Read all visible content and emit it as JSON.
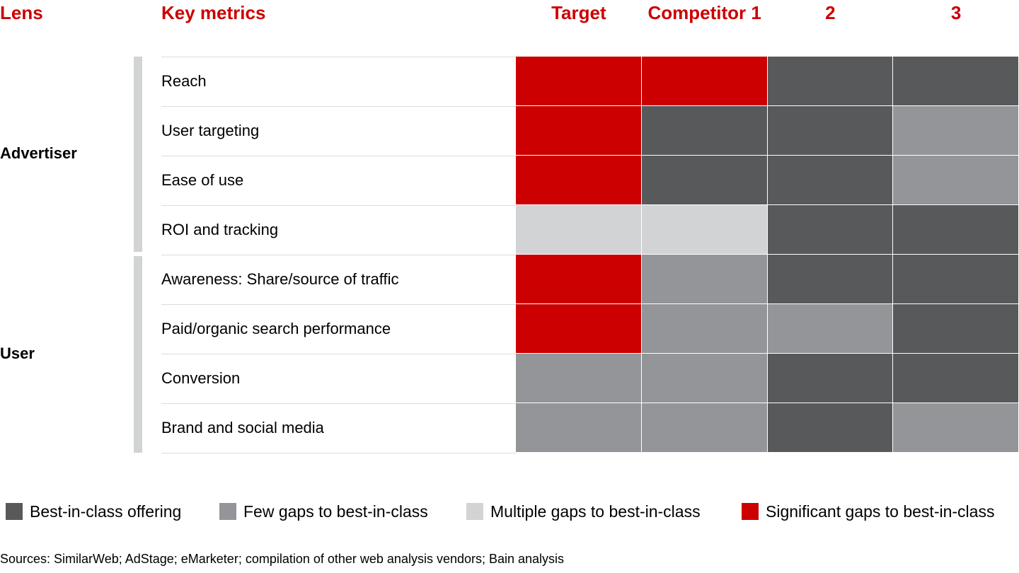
{
  "header": {
    "lens": "Lens",
    "metrics": "Key metrics",
    "columns": [
      "Target",
      "Competitor 1",
      "2",
      "3"
    ]
  },
  "groups": [
    {
      "label": "Advertiser",
      "rows": [
        0,
        3
      ]
    },
    {
      "label": "User",
      "rows": [
        4,
        7
      ]
    }
  ],
  "table": {
    "rows": [
      {
        "metric": "Reach",
        "cells": [
          "#cc0000",
          "#cc0000",
          "#58595b",
          "#58595b"
        ]
      },
      {
        "metric": "User targeting",
        "cells": [
          "#cc0000",
          "#58595b",
          "#58595b",
          "#939598"
        ]
      },
      {
        "metric": "Ease of use",
        "cells": [
          "#cc0000",
          "#58595b",
          "#58595b",
          "#939598"
        ]
      },
      {
        "metric": "ROI and tracking",
        "cells": [
          "#d1d3d4",
          "#d1d3d4",
          "#58595b",
          "#58595b"
        ]
      },
      {
        "metric": "Awareness: Share/source of traffic",
        "cells": [
          "#cc0000",
          "#939598",
          "#58595b",
          "#58595b"
        ]
      },
      {
        "metric": "Paid/organic search performance",
        "cells": [
          "#cc0000",
          "#939598",
          "#939598",
          "#58595b"
        ]
      },
      {
        "metric": "Conversion",
        "cells": [
          "#939598",
          "#939598",
          "#58595b",
          "#58595b"
        ]
      },
      {
        "metric": "Brand and social media",
        "cells": [
          "#939598",
          "#939598",
          "#58595b",
          "#939598"
        ]
      }
    ]
  },
  "legend": [
    {
      "label": "Best-in-class offering",
      "color": "#58595b"
    },
    {
      "label": "Few gaps to best-in-class",
      "color": "#939598"
    },
    {
      "label": "Multiple gaps to best-in-class",
      "color": "#d1d3d4"
    },
    {
      "label": "Significant gaps to best-in-class",
      "color": "#cc0000"
    }
  ],
  "source": "Sources: SimilarWeb; AdStage; eMarketer; compilation of other web analysis vendors; Bain analysis"
}
